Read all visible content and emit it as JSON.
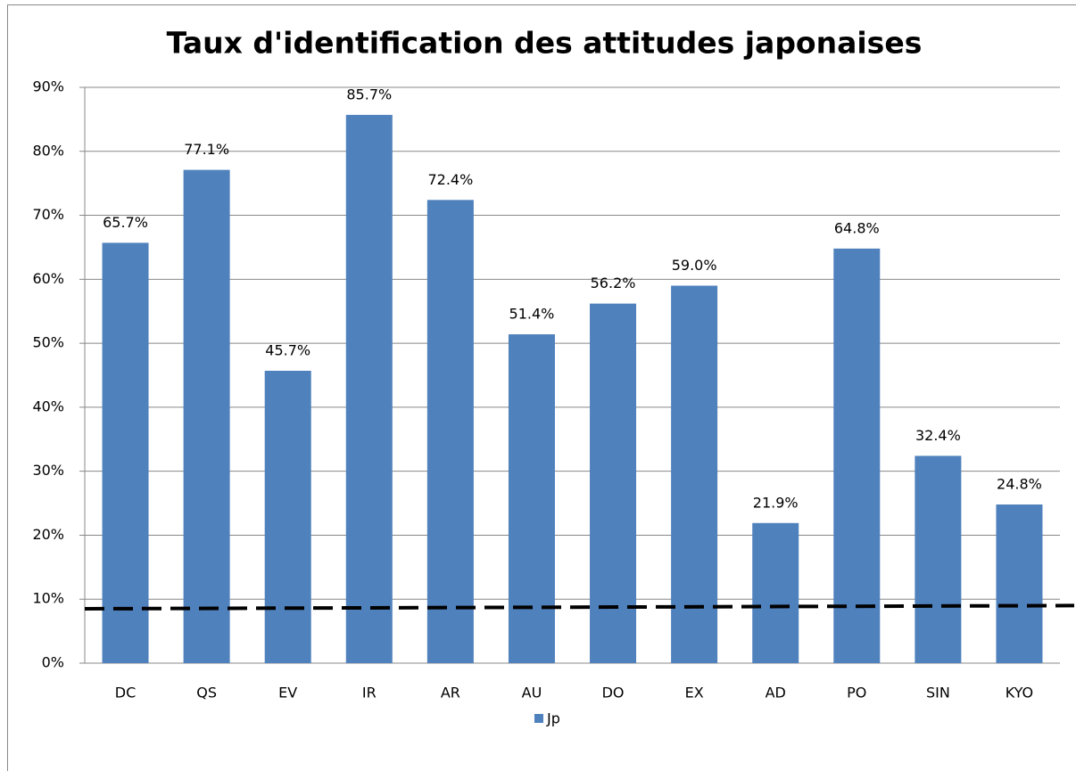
{
  "chart_data": {
    "type": "bar",
    "title": "Taux d'identification des attitudes japonaises",
    "categories": [
      "DC",
      "QS",
      "EV",
      "IR",
      "AR",
      "AU",
      "DO",
      "EX",
      "AD",
      "PO",
      "SIN",
      "KYO"
    ],
    "series": [
      {
        "name": "Jp",
        "color": "#4f81bd",
        "values": [
          65.7,
          77.1,
          45.7,
          85.7,
          72.4,
          51.4,
          56.2,
          59.0,
          21.9,
          64.8,
          32.4,
          24.8
        ],
        "value_labels": [
          "65.7%",
          "77.1%",
          "45.7%",
          "85.7%",
          "72.4%",
          "51.4%",
          "56.2%",
          "59.0%",
          "21.9%",
          "64.8%",
          "32.4%",
          "24.8%"
        ]
      }
    ],
    "ylim": [
      0,
      90
    ],
    "yticks": [
      {
        "value": 0,
        "label": "0%"
      },
      {
        "value": 10,
        "label": "10%"
      },
      {
        "value": 20,
        "label": "20%"
      },
      {
        "value": 30,
        "label": "30%"
      },
      {
        "value": 40,
        "label": "40%"
      },
      {
        "value": 50,
        "label": "50%"
      },
      {
        "value": 60,
        "label": "60%"
      },
      {
        "value": 70,
        "label": "70%"
      },
      {
        "value": 80,
        "label": "80%"
      },
      {
        "value": 90,
        "label": "90%"
      }
    ],
    "grid": true,
    "legend": "bottom",
    "reference_line": {
      "start": 8.5,
      "end": 9.0,
      "color": "#000000",
      "dashed": true
    }
  }
}
